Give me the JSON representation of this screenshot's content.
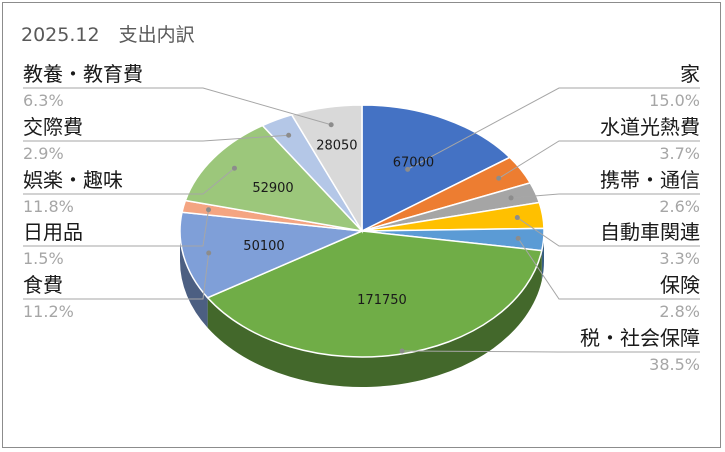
{
  "chart_data": {
    "type": "pie",
    "title": "2025.12　支出内訳",
    "slices": [
      {
        "label": "家",
        "value": 67000,
        "pct": "15.0%",
        "color": "#4472c4",
        "side": "dark1"
      },
      {
        "label": "水道光熱費",
        "value": 16400,
        "pct": "3.7%",
        "color": "#ed7d31"
      },
      {
        "label": "携帯・通信",
        "value": 11600,
        "pct": "2.6%",
        "color": "#a5a5a5"
      },
      {
        "label": "自動車関連",
        "value": 14700,
        "pct": "3.3%",
        "color": "#ffc000"
      },
      {
        "label": "保険",
        "value": 12500,
        "pct": "2.8%",
        "color": "#5b9bd5"
      },
      {
        "label": "税・社会保障",
        "value": 171750,
        "pct": "38.5%",
        "color": "#70ad47"
      },
      {
        "label": "食費",
        "value": 50100,
        "pct": "11.2%",
        "color": "#7f9fd8"
      },
      {
        "label": "日用品",
        "value": 6700,
        "pct": "1.5%",
        "color": "#f4a582"
      },
      {
        "label": "娯楽・趣味",
        "value": 52900,
        "pct": "11.8%",
        "color": "#9cc77b"
      },
      {
        "label": "交際費",
        "value": 12900,
        "pct": "2.9%",
        "color": "#b4c7e7"
      },
      {
        "label": "教養・教育費",
        "value": 28050,
        "pct": "6.3%",
        "color": "#d9d9d9"
      }
    ],
    "value_labels_shown": [
      "67000",
      "171750",
      "50100",
      "52900",
      "28050"
    ]
  }
}
